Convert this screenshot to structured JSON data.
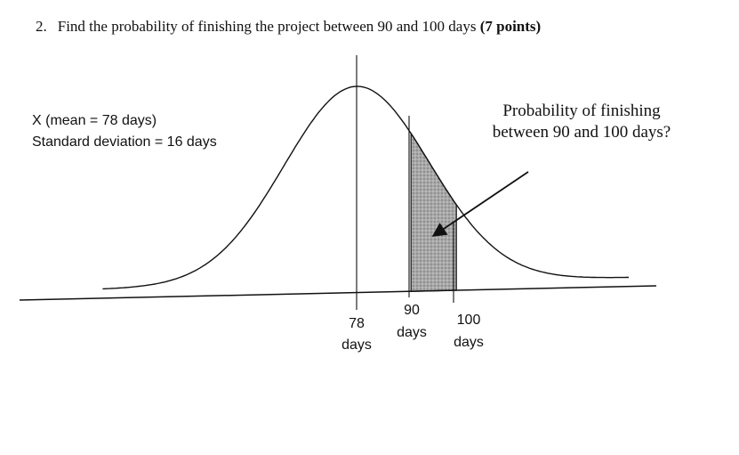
{
  "question": {
    "number": "2.",
    "text": "Find the probability of finishing the project between 90 and 100 days",
    "points": "(7 points)"
  },
  "diagram": {
    "variable_label": "X (mean = 78 days)",
    "sd_label": "Standard deviation = 16 days",
    "callout_line1": "Probability of finishing",
    "callout_line2": "between 90 and 100 days?",
    "mean_value": "78",
    "lower_value": "90",
    "upper_value": "100",
    "unit": "days",
    "distribution": {
      "type": "normal",
      "mean": 78,
      "sd": 16,
      "shaded_interval": [
        90,
        100
      ]
    },
    "colors": {
      "ink": "#111111",
      "shade": "#9a9a9a"
    }
  }
}
